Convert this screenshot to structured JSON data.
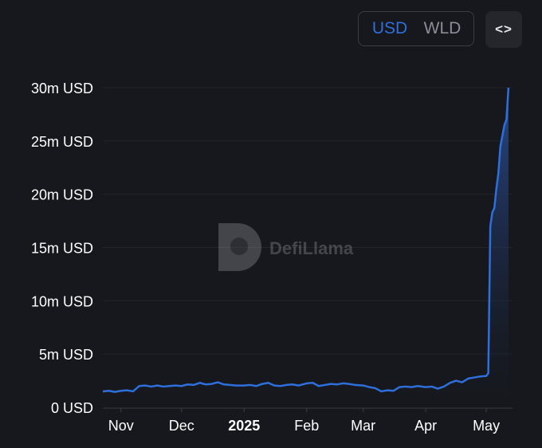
{
  "controls": {
    "currency_options": [
      "USD",
      "WLD"
    ],
    "selected_currency": "USD",
    "embed_icon": "code-brackets-icon",
    "embed_label": "<>"
  },
  "watermark": {
    "text": "DefiLlama",
    "icon": "llama-logo-icon"
  },
  "colors": {
    "background": "#16181d",
    "line": "#2f6fdc",
    "area_top": "#2a4f9a",
    "area_bottom": "#16181d",
    "grid": "#23252b",
    "axis_text": "#ffffff",
    "toggle_active": "#2f6fdc",
    "toggle_inactive": "#8b8e96"
  },
  "chart_data": {
    "type": "area",
    "title": "",
    "xlabel": "",
    "ylabel": "",
    "ylim": [
      0,
      30000000
    ],
    "xlim": [
      "2024-10-23",
      "2025-05-14"
    ],
    "y_ticks": [
      {
        "value": 0,
        "label": "0 USD"
      },
      {
        "value": 5000000,
        "label": "5m USD"
      },
      {
        "value": 10000000,
        "label": "10m USD"
      },
      {
        "value": 15000000,
        "label": "15m USD"
      },
      {
        "value": 20000000,
        "label": "20m USD"
      },
      {
        "value": 25000000,
        "label": "25m USD"
      },
      {
        "value": 30000000,
        "label": "30m USD"
      }
    ],
    "x_ticks": [
      {
        "date": "2024-11-01",
        "label": "Nov",
        "bold": false
      },
      {
        "date": "2024-12-01",
        "label": "Dec",
        "bold": false
      },
      {
        "date": "2025-01-01",
        "label": "2025",
        "bold": true
      },
      {
        "date": "2025-02-01",
        "label": "Feb",
        "bold": false
      },
      {
        "date": "2025-03-01",
        "label": "Mar",
        "bold": false
      },
      {
        "date": "2025-04-01",
        "label": "Apr",
        "bold": false
      },
      {
        "date": "2025-05-01",
        "label": "May",
        "bold": false
      }
    ],
    "grid": "horizontal",
    "legend": "none",
    "series": [
      {
        "points": [
          [
            "2024-10-23",
            1500000
          ],
          [
            "2024-10-26",
            1550000
          ],
          [
            "2024-10-29",
            1450000
          ],
          [
            "2024-11-01",
            1550000
          ],
          [
            "2024-11-04",
            1600000
          ],
          [
            "2024-11-07",
            1500000
          ],
          [
            "2024-11-10",
            2000000
          ],
          [
            "2024-11-13",
            2050000
          ],
          [
            "2024-11-16",
            1950000
          ],
          [
            "2024-11-19",
            2050000
          ],
          [
            "2024-11-22",
            1950000
          ],
          [
            "2024-11-25",
            2000000
          ],
          [
            "2024-11-28",
            2050000
          ],
          [
            "2024-12-01",
            2000000
          ],
          [
            "2024-12-04",
            2150000
          ],
          [
            "2024-12-07",
            2100000
          ],
          [
            "2024-12-10",
            2300000
          ],
          [
            "2024-12-13",
            2150000
          ],
          [
            "2024-12-16",
            2200000
          ],
          [
            "2024-12-19",
            2350000
          ],
          [
            "2024-12-22",
            2150000
          ],
          [
            "2024-12-25",
            2100000
          ],
          [
            "2024-12-28",
            2050000
          ],
          [
            "2025-01-01",
            2050000
          ],
          [
            "2025-01-04",
            2100000
          ],
          [
            "2025-01-07",
            2000000
          ],
          [
            "2025-01-10",
            2200000
          ],
          [
            "2025-01-13",
            2300000
          ],
          [
            "2025-01-16",
            2050000
          ],
          [
            "2025-01-19",
            2000000
          ],
          [
            "2025-01-22",
            2100000
          ],
          [
            "2025-01-25",
            2150000
          ],
          [
            "2025-01-28",
            2050000
          ],
          [
            "2025-02-01",
            2250000
          ],
          [
            "2025-02-04",
            2300000
          ],
          [
            "2025-02-07",
            2000000
          ],
          [
            "2025-02-10",
            2100000
          ],
          [
            "2025-02-13",
            2200000
          ],
          [
            "2025-02-16",
            2150000
          ],
          [
            "2025-02-19",
            2250000
          ],
          [
            "2025-02-22",
            2200000
          ],
          [
            "2025-02-25",
            2100000
          ],
          [
            "2025-03-01",
            2050000
          ],
          [
            "2025-03-04",
            1900000
          ],
          [
            "2025-03-07",
            1800000
          ],
          [
            "2025-03-10",
            1500000
          ],
          [
            "2025-03-13",
            1600000
          ],
          [
            "2025-03-16",
            1550000
          ],
          [
            "2025-03-19",
            1900000
          ],
          [
            "2025-03-22",
            1950000
          ],
          [
            "2025-03-25",
            1900000
          ],
          [
            "2025-03-28",
            2000000
          ],
          [
            "2025-04-01",
            1900000
          ],
          [
            "2025-04-04",
            1950000
          ],
          [
            "2025-04-07",
            1750000
          ],
          [
            "2025-04-10",
            1950000
          ],
          [
            "2025-04-13",
            2300000
          ],
          [
            "2025-04-16",
            2500000
          ],
          [
            "2025-04-19",
            2350000
          ],
          [
            "2025-04-22",
            2700000
          ],
          [
            "2025-04-25",
            2800000
          ],
          [
            "2025-04-28",
            2900000
          ],
          [
            "2025-05-01",
            2950000
          ],
          [
            "2025-05-02",
            3200000
          ],
          [
            "2025-05-03",
            17000000
          ],
          [
            "2025-05-04",
            18300000
          ],
          [
            "2025-05-05",
            18700000
          ],
          [
            "2025-05-06",
            20500000
          ],
          [
            "2025-05-07",
            22000000
          ],
          [
            "2025-05-08",
            24500000
          ],
          [
            "2025-05-10",
            26500000
          ],
          [
            "2025-05-11",
            27000000
          ],
          [
            "2025-05-12",
            30000000
          ]
        ]
      }
    ]
  }
}
